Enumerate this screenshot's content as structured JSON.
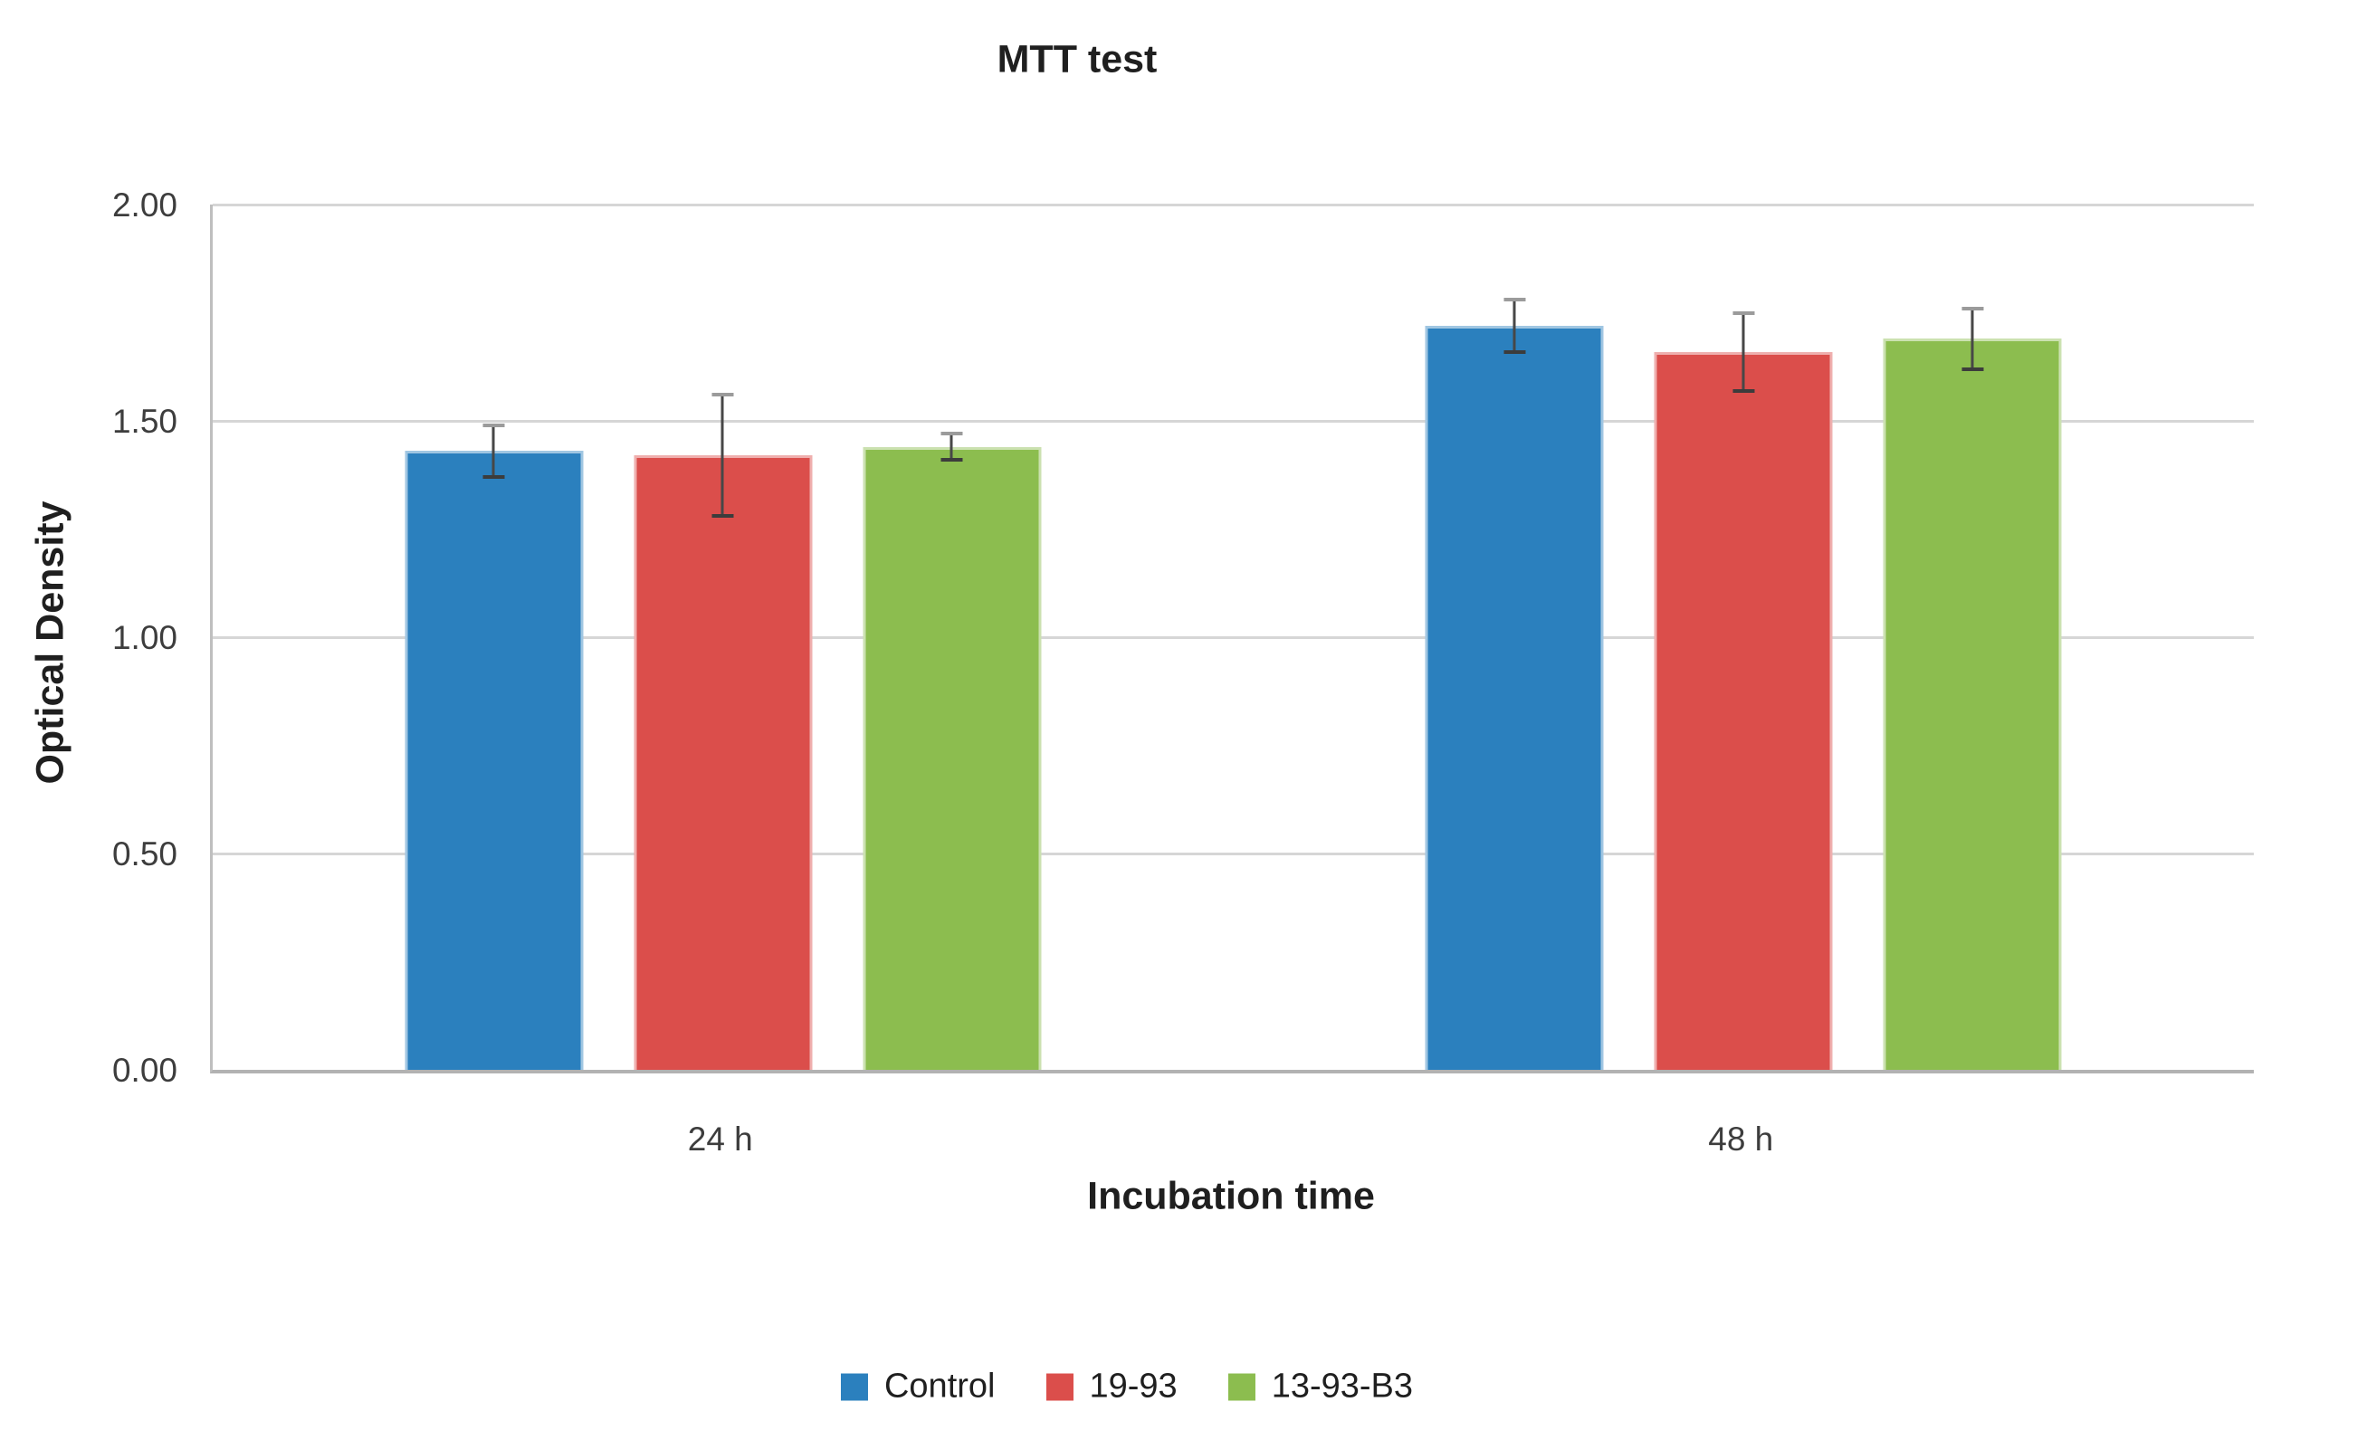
{
  "chart_data": {
    "type": "bar",
    "title": "MTT test",
    "xlabel": "Incubation time",
    "ylabel": "Optical Density",
    "categories": [
      "24 h",
      "48 h"
    ],
    "series": [
      {
        "name": "Control",
        "color": "#2B80BE",
        "border_color": "#A0C6E2",
        "values": [
          1.43,
          1.72
        ],
        "errors": [
          0.06,
          0.06
        ]
      },
      {
        "name": "19-93",
        "color": "#DB4E4B",
        "border_color": "#EFAFAE",
        "values": [
          1.42,
          1.66
        ],
        "errors": [
          0.14,
          0.09
        ]
      },
      {
        "name": "13-93-B3",
        "color": "#8CBD4F",
        "border_color": "#CBE1B0",
        "values": [
          1.44,
          1.69
        ],
        "errors": [
          0.03,
          0.07
        ]
      }
    ],
    "ylim": [
      0,
      2
    ],
    "yticks": [
      {
        "value": 0.0,
        "label": "0.00"
      },
      {
        "value": 0.5,
        "label": "0.50"
      },
      {
        "value": 1.0,
        "label": "1.00"
      },
      {
        "value": 1.5,
        "label": "1.50"
      },
      {
        "value": 2.0,
        "label": "2.00"
      }
    ],
    "grid": true,
    "legend_position": "bottom"
  },
  "colors": {
    "background": "#FFFFFF",
    "gridline": "#D6D6D6",
    "axis_line": "#B2B2B2",
    "error_bar": "#474747",
    "title_text": "#1F1F1F",
    "tick_text": "#3D3D3D"
  }
}
